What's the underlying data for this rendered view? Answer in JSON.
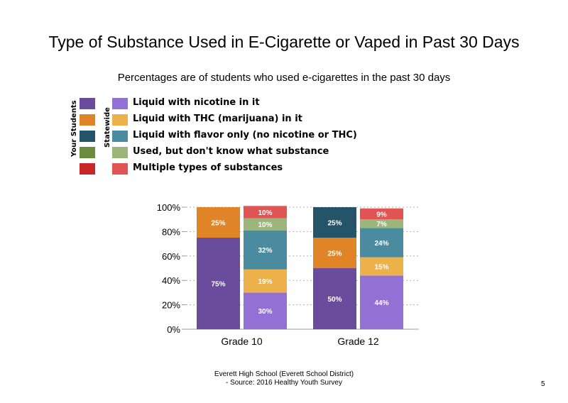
{
  "title": "Type of Substance Used in E-Cigarette or Vaped in Past 30 Days",
  "subtitle": "Percentages are of students who used e-cigarettes in the past 30 days",
  "legend": {
    "group_labels": {
      "your_students": "Your Students",
      "statewide": "Statewide"
    },
    "items": [
      {
        "label": "Liquid with nicotine in it",
        "your_color": "#6a4c9c",
        "state_color": "#9370d3"
      },
      {
        "label": "Liquid with THC (marijuana) in it",
        "your_color": "#e08527",
        "state_color": "#ecb14b"
      },
      {
        "label": "Liquid with flavor only (no nicotine or THC)",
        "your_color": "#255468",
        "state_color": "#4a8b9f"
      },
      {
        "label": "Used, but don't know what substance",
        "your_color": "#6a8c3c",
        "state_color": "#9cb57a"
      },
      {
        "label": "Multiple types of substances",
        "your_color": "#c8282b",
        "state_color": "#e05454"
      }
    ]
  },
  "chart_data": {
    "type": "bar",
    "stacked": true,
    "categories": [
      "Grade 10",
      "Grade 12"
    ],
    "ylim": [
      0,
      100
    ],
    "yticks": [
      "0%",
      "20%",
      "40%",
      "60%",
      "80%",
      "100%"
    ],
    "grid": true,
    "series_order": [
      "Liquid with nicotine in it",
      "Liquid with THC (marijuana) in it",
      "Liquid with flavor only (no nicotine or THC)",
      "Used, but don't know what substance",
      "Multiple types of substances"
    ],
    "bars": [
      {
        "category": "Grade 10",
        "group": "Your Students",
        "values": [
          75,
          25,
          0,
          0,
          0
        ],
        "labels": [
          "75%",
          "25%",
          "",
          "",
          ""
        ]
      },
      {
        "category": "Grade 10",
        "group": "Statewide",
        "values": [
          30,
          19,
          32,
          10,
          10
        ],
        "labels": [
          "30%",
          "19%",
          "32%",
          "10%",
          "10%"
        ]
      },
      {
        "category": "Grade 12",
        "group": "Your Students",
        "values": [
          50,
          25,
          25,
          0,
          0
        ],
        "labels": [
          "50%",
          "25%",
          "25%",
          "",
          ""
        ]
      },
      {
        "category": "Grade 12",
        "group": "Statewide",
        "values": [
          44,
          15,
          24,
          7,
          9
        ],
        "labels": [
          "44%",
          "15%",
          "24%",
          "7%",
          "9%"
        ]
      }
    ]
  },
  "footer": {
    "line1": "Everett High School (Everett School District)",
    "line2": "- Source: 2016 Healthy Youth Survey"
  },
  "page_number": "5"
}
